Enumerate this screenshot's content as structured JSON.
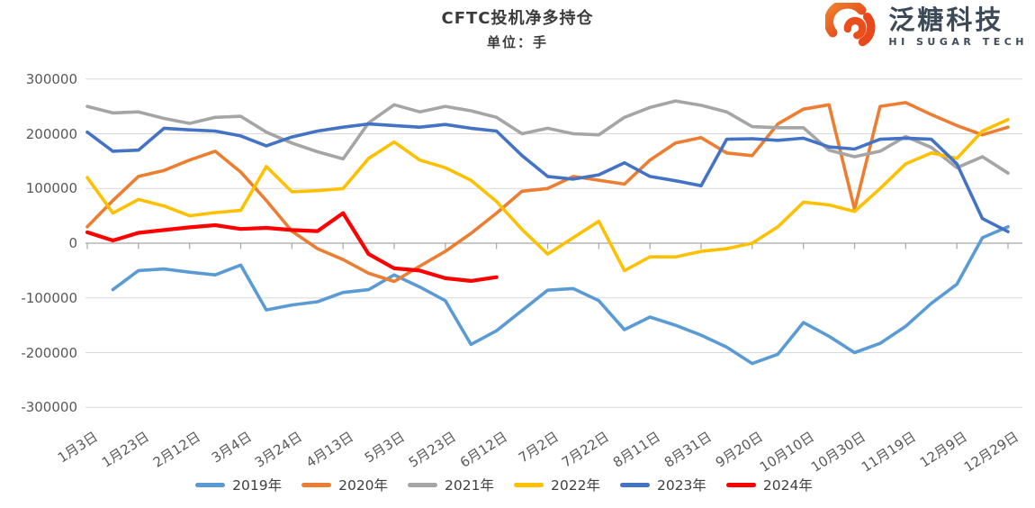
{
  "title": "CFTC投机净多持仓",
  "subtitle": "单位：手",
  "logo": {
    "name": "泛糖科技",
    "sub": "HI SUGAR TECH"
  },
  "colors": {
    "grid": "#d9d9d9",
    "axis": "#a6a6a6",
    "tick_text": "#595959",
    "title_text": "#3b3b3b",
    "logo_orange": "#e8481c",
    "logo_orange2": "#f07c22",
    "logo_navy": "#3d4a58"
  },
  "chart_data": {
    "type": "line",
    "title": "CFTC投机净多持仓",
    "subtitle": "单位：手",
    "ylabel": "手",
    "ylim": [
      -300000,
      300000
    ],
    "grid": true,
    "legend_position": "bottom",
    "y_ticks": [
      300000,
      200000,
      100000,
      0,
      -100000,
      -200000,
      -300000
    ],
    "y_tick_labels": [
      "300000",
      "200000",
      "100000",
      "0",
      "-100000",
      "-200000",
      "-300000"
    ],
    "x_labels": [
      "1月3日",
      "1月23日",
      "2月12日",
      "3月4日",
      "3月24日",
      "4月13日",
      "5月3日",
      "5月23日",
      "6月12日",
      "7月2日",
      "7月22日",
      "8月11日",
      "8月31日",
      "9月20日",
      "10月10日",
      "10月30日",
      "11月19日",
      "12月9日",
      "12月29日"
    ],
    "samples_per_label": 2,
    "series": [
      {
        "name": "2019年",
        "color": "#5b9bd5",
        "values": [
          null,
          -85000,
          -50000,
          -47000,
          -53000,
          -58000,
          -40000,
          -122000,
          -113000,
          -107000,
          -90000,
          -85000,
          -58000,
          -80000,
          -105000,
          -185000,
          -160000,
          -123000,
          -86000,
          -83000,
          -105000,
          -158000,
          -135000,
          -150000,
          -168000,
          -190000,
          -220000,
          -203000,
          -145000,
          -170000,
          -200000,
          -183000,
          -152000,
          -110000,
          -75000,
          10000,
          30000
        ]
      },
      {
        "name": "2020年",
        "color": "#ed7d31",
        "values": [
          30000,
          78000,
          122000,
          133000,
          152000,
          168000,
          130000,
          78000,
          22000,
          -10000,
          -30000,
          -55000,
          -70000,
          -42000,
          -15000,
          18000,
          55000,
          95000,
          100000,
          122000,
          115000,
          108000,
          152000,
          183000,
          193000,
          165000,
          160000,
          218000,
          245000,
          253000,
          62000,
          250000,
          257000,
          235000,
          215000,
          198000,
          212000
        ]
      },
      {
        "name": "2021年",
        "color": "#a5a5a5",
        "values": [
          250000,
          238000,
          240000,
          228000,
          219000,
          230000,
          232000,
          203000,
          183000,
          167000,
          154000,
          220000,
          253000,
          240000,
          250000,
          242000,
          230000,
          200000,
          210000,
          200000,
          198000,
          230000,
          248000,
          260000,
          252000,
          240000,
          213000,
          211000,
          211000,
          170000,
          158000,
          168000,
          195000,
          175000,
          138000,
          158000,
          128000
        ]
      },
      {
        "name": "2022年",
        "color": "#ffc000",
        "values": [
          120000,
          55000,
          80000,
          68000,
          50000,
          56000,
          60000,
          140000,
          94000,
          96000,
          100000,
          155000,
          185000,
          152000,
          138000,
          115000,
          76000,
          25000,
          -20000,
          10000,
          40000,
          -50000,
          -25000,
          -25000,
          -15000,
          -10000,
          0,
          30000,
          75000,
          70000,
          58000,
          100000,
          145000,
          165000,
          155000,
          205000,
          226000
        ]
      },
      {
        "name": "2023年",
        "color": "#4472c4",
        "values": [
          203000,
          168000,
          170000,
          210000,
          207000,
          205000,
          196000,
          178000,
          194000,
          205000,
          212000,
          218000,
          215000,
          212000,
          217000,
          210000,
          205000,
          160000,
          122000,
          117000,
          125000,
          147000,
          122000,
          114000,
          105000,
          190000,
          191000,
          188000,
          192000,
          176000,
          172000,
          190000,
          192000,
          190000,
          145000,
          45000,
          21000
        ]
      },
      {
        "name": "2024年",
        "color": "#ff0000",
        "values": [
          20000,
          5000,
          19000,
          24000,
          29000,
          33000,
          26000,
          28000,
          24000,
          22000,
          55000,
          -20000,
          -46000,
          -50000,
          -64000,
          -69000,
          -62000,
          null,
          null,
          null,
          null,
          null,
          null,
          null,
          null,
          null,
          null,
          null,
          null,
          null,
          null,
          null,
          null,
          null,
          null,
          null,
          null
        ]
      }
    ]
  }
}
